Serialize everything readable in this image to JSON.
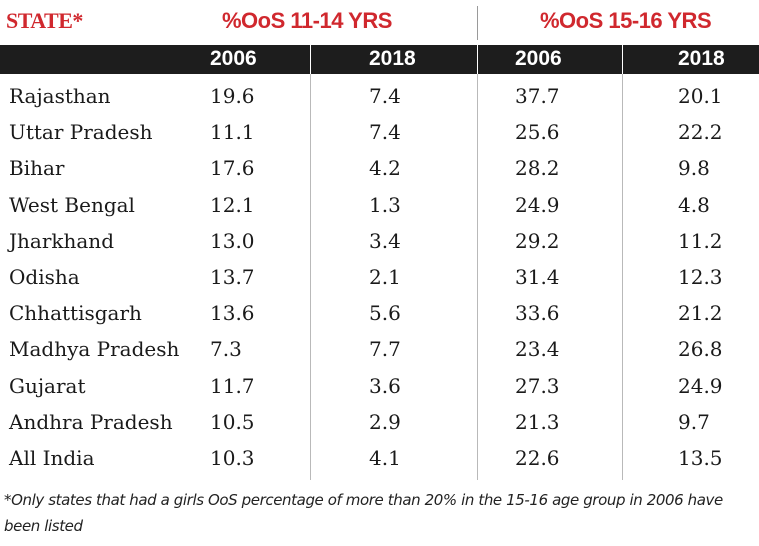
{
  "headers": {
    "state": "STATE*",
    "group1": "%OoS 11-14 YRS",
    "group2": "%OoS 15-16 YRS"
  },
  "years": [
    "2006",
    "2018",
    "2006",
    "2018"
  ],
  "rows": [
    {
      "state": "Rajasthan",
      "v1": "19.6",
      "v2": "7.4",
      "v3": "37.7",
      "v4": "20.1"
    },
    {
      "state": "Uttar Pradesh",
      "v1": "11.1",
      "v2": "7.4",
      "v3": "25.6",
      "v4": "22.2"
    },
    {
      "state": "Bihar",
      "v1": "17.6",
      "v2": "4.2",
      "v3": "28.2",
      "v4": "9.8"
    },
    {
      "state": "West Bengal",
      "v1": "12.1",
      "v2": "1.3",
      "v3": "24.9",
      "v4": "4.8"
    },
    {
      "state": "Jharkhand",
      "v1": "13.0",
      "v2": "3.4",
      "v3": "29.2",
      "v4": "11.2"
    },
    {
      "state": "Odisha",
      "v1": "13.7",
      "v2": "2.1",
      "v3": "31.4",
      "v4": "12.3"
    },
    {
      "state": "Chhattisgarh",
      "v1": "13.6",
      "v2": "5.6",
      "v3": "33.6",
      "v4": "21.2"
    },
    {
      "state": "Madhya Pradesh",
      "v1": "7.3",
      "v2": "7.7",
      "v3": "23.4",
      "v4": "26.8"
    },
    {
      "state": "Gujarat",
      "v1": "11.7",
      "v2": "3.6",
      "v3": "27.3",
      "v4": "24.9"
    },
    {
      "state": "Andhra Pradesh",
      "v1": "10.5",
      "v2": "2.9",
      "v3": "21.3",
      "v4": "9.7"
    },
    {
      "state": "All India",
      "v1": "10.3",
      "v2": "4.1",
      "v3": "22.6",
      "v4": "13.5"
    }
  ],
  "footnote": "*Only states that had a girls OoS percentage of more than 20% in the 15-16 age group in 2006 have been listed",
  "colors": {
    "accent": "#d0282e",
    "bar": "#1d1d1d"
  }
}
